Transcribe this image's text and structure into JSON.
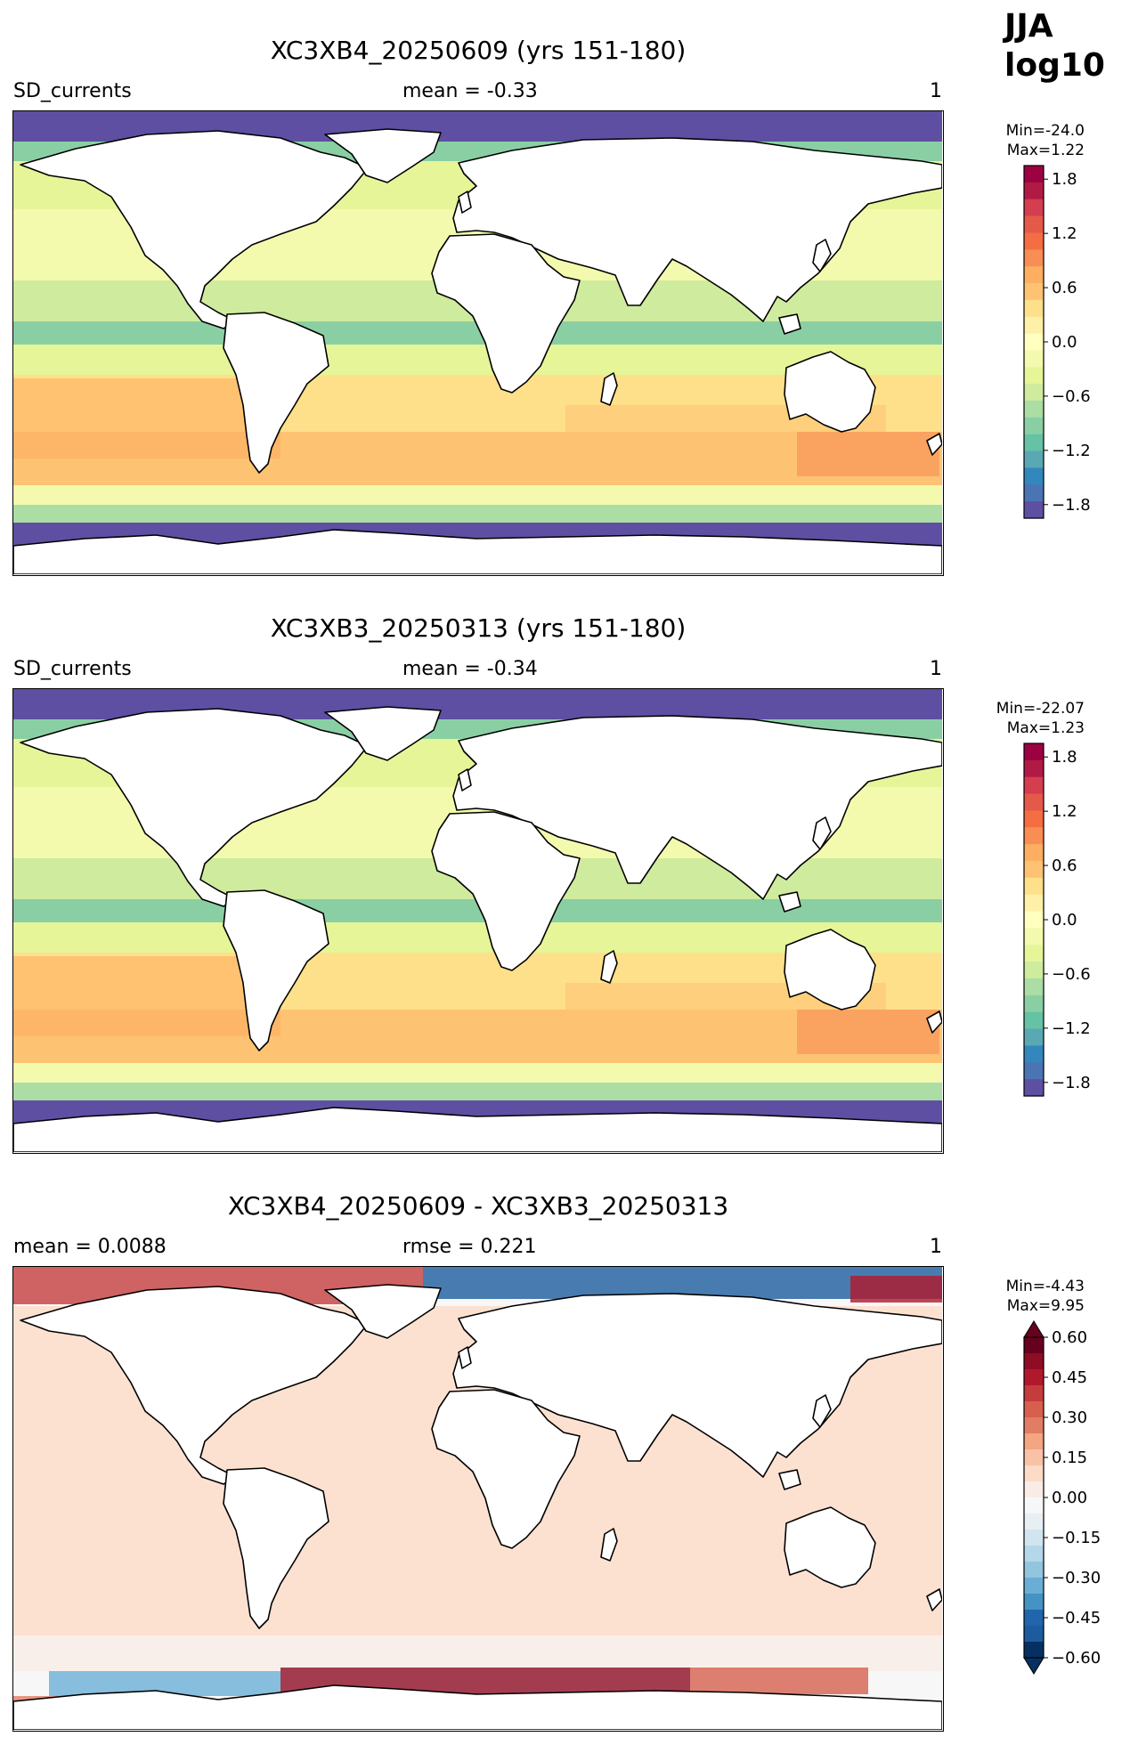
{
  "header": {
    "season": "JJA",
    "scale": "log10"
  },
  "colors": {
    "spectral": [
      "#5e4fa2",
      "#4a74b4",
      "#3288bd",
      "#5aa8b3",
      "#66c2a5",
      "#8acfa4",
      "#abdda4",
      "#cfeb9d",
      "#e6f598",
      "#f4faad",
      "#ffffbf",
      "#fef0a7",
      "#fee08b",
      "#fdc373",
      "#fdae61",
      "#f88e53",
      "#f46d43",
      "#e45a49",
      "#d53e4f",
      "#b11a45",
      "#9e0142"
    ],
    "diverging": [
      "#053061",
      "#1c5c9e",
      "#2166ac",
      "#4393c3",
      "#6aaed6",
      "#92c5de",
      "#b5d7ea",
      "#d1e5f0",
      "#e7eff5",
      "#f7f7f7",
      "#f9ece6",
      "#fddbc7",
      "#f8c2a6",
      "#f4a582",
      "#e27d65",
      "#d6604d",
      "#c43c3c",
      "#b2182b",
      "#8e0c24",
      "#67001f"
    ],
    "land": "#ffffff",
    "coast": "#000000"
  },
  "panels": [
    {
      "title": "XC3XB4_20250609 (yrs 151-180)",
      "left_label": "SD_currents",
      "center_label": "mean = -0.33",
      "right_label": "1",
      "minmax": "Min=-24.0\nMax=1.22",
      "colorbar_ticks": [
        "1.8",
        "1.2",
        "0.6",
        "0.0",
        "−0.6",
        "−1.2",
        "−1.8"
      ],
      "colormap": "spectral",
      "extend": "neither"
    },
    {
      "title": "XC3XB3_20250313 (yrs 151-180)",
      "left_label": "SD_currents",
      "center_label": "mean = -0.34",
      "right_label": "1",
      "minmax": "Min=-22.07\nMax=1.23",
      "colorbar_ticks": [
        "1.8",
        "1.2",
        "0.6",
        "0.0",
        "−0.6",
        "−1.2",
        "−1.8"
      ],
      "colormap": "spectral",
      "extend": "neither"
    },
    {
      "title": "XC3XB4_20250609 - XC3XB3_20250313",
      "left_label": "mean = 0.0088",
      "center_label": "rmse = 0.221",
      "right_label": "1",
      "minmax": "Min=-4.43\nMax=9.95",
      "colorbar_ticks": [
        "0.60",
        "0.45",
        "0.30",
        "0.15",
        "0.00",
        "−0.15",
        "−0.30",
        "−0.45",
        "−0.60"
      ],
      "colormap": "diverging",
      "extend": "both"
    }
  ],
  "chart_data": [
    {
      "type": "heatmap",
      "title": "XC3XB4_20250609 (yrs 151-180)",
      "variable": "SD_currents",
      "season": "JJA",
      "scale": "log10",
      "units": "1",
      "mean": -0.33,
      "min": -24.0,
      "max": 1.22,
      "colorbar_range": [
        -1.95,
        1.95
      ],
      "colorbar_ticks": [
        1.8,
        1.2,
        0.6,
        0.0,
        -0.6,
        -1.2,
        -1.8
      ],
      "colormap": "Spectral_r"
    },
    {
      "type": "heatmap",
      "title": "XC3XB3_20250313 (yrs 151-180)",
      "variable": "SD_currents",
      "season": "JJA",
      "scale": "log10",
      "units": "1",
      "mean": -0.34,
      "min": -22.07,
      "max": 1.23,
      "colorbar_range": [
        -1.95,
        1.95
      ],
      "colorbar_ticks": [
        1.8,
        1.2,
        0.6,
        0.0,
        -0.6,
        -1.2,
        -1.8
      ],
      "colormap": "Spectral_r"
    },
    {
      "type": "heatmap",
      "title": "XC3XB4_20250609 - XC3XB3_20250313",
      "units": "1",
      "mean": 0.0088,
      "rmse": 0.221,
      "min": -4.43,
      "max": 9.95,
      "colorbar_range": [
        -0.6,
        0.6
      ],
      "colorbar_ticks": [
        0.6,
        0.45,
        0.3,
        0.15,
        0.0,
        -0.15,
        -0.3,
        -0.45,
        -0.6
      ],
      "colorbar_extend": "both",
      "colormap": "RdBu_r"
    }
  ]
}
